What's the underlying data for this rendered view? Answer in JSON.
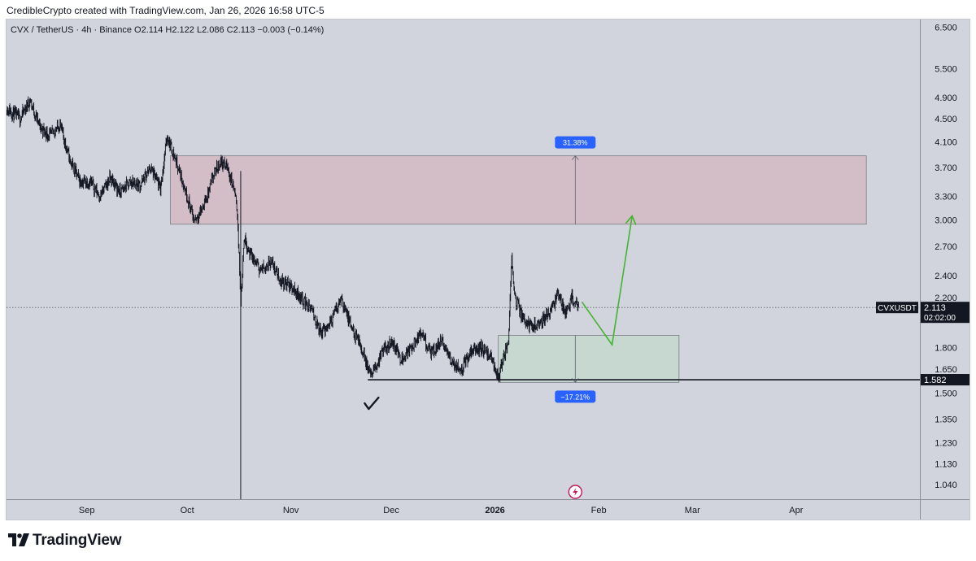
{
  "header": {
    "attribution": "CredibleCrypto created with TradingView.com, Jan 26, 2026 16:58 UTC-5"
  },
  "footer": {
    "brand": "TradingView"
  },
  "colors": {
    "background": "#d1d4dc",
    "candles": "#131722",
    "supply_zone": "#d3bec7",
    "demand_zone": "#c6d8cf",
    "projection_arrow": "#44b432",
    "measure_badge": "#2962ff"
  },
  "chart_data": {
    "type": "candlestick",
    "symbol": "CVX / TetherUS · 4h · Binance",
    "ohlc": {
      "open_label": "O",
      "open": "2.114",
      "high_label": "H",
      "high": "2.122",
      "low_label": "L",
      "low": "2.086",
      "close_label": "C",
      "close": "2.113",
      "change": "−0.003 (−0.14%)"
    },
    "y_scale": "log",
    "ylim": [
      0.98,
      6.7
    ],
    "y_ticks": [
      "6.500",
      "5.500",
      "4.900",
      "4.500",
      "4.100",
      "3.700",
      "3.300",
      "3.000",
      "2.700",
      "2.400",
      "2.200",
      "1.800",
      "1.650",
      "1.500",
      "1.350",
      "1.230",
      "1.130",
      "1.040"
    ],
    "x_ticks": [
      {
        "label": "Sep",
        "date": "2025-09-01",
        "bold": false
      },
      {
        "label": "Oct",
        "date": "2025-10-01",
        "bold": false
      },
      {
        "label": "Nov",
        "date": "2025-11-01",
        "bold": false
      },
      {
        "label": "Dec",
        "date": "2025-12-01",
        "bold": false
      },
      {
        "label": "2026",
        "date": "2026-01-01",
        "bold": true
      },
      {
        "label": "Feb",
        "date": "2026-02-01",
        "bold": false
      },
      {
        "label": "Mar",
        "date": "2026-03-01",
        "bold": false
      },
      {
        "label": "Apr",
        "date": "2026-04-01",
        "bold": false
      }
    ],
    "xlim": [
      "2025-08-08",
      "2026-05-08"
    ],
    "price_path": [
      [
        "2025-08-08",
        4.7
      ],
      [
        "2025-08-12",
        4.5
      ],
      [
        "2025-08-15",
        4.85
      ],
      [
        "2025-08-18",
        4.35
      ],
      [
        "2025-08-21",
        4.2
      ],
      [
        "2025-08-24",
        4.4
      ],
      [
        "2025-08-27",
        3.8
      ],
      [
        "2025-08-30",
        3.5
      ],
      [
        "2025-09-02",
        3.5
      ],
      [
        "2025-09-05",
        3.3
      ],
      [
        "2025-09-08",
        3.55
      ],
      [
        "2025-09-11",
        3.35
      ],
      [
        "2025-09-14",
        3.5
      ],
      [
        "2025-09-17",
        3.45
      ],
      [
        "2025-09-20",
        3.7
      ],
      [
        "2025-09-23",
        3.4
      ],
      [
        "2025-09-25",
        4.2
      ],
      [
        "2025-09-27",
        3.9
      ],
      [
        "2025-09-29",
        3.6
      ],
      [
        "2025-10-01",
        3.3
      ],
      [
        "2025-10-03",
        3.0
      ],
      [
        "2025-10-05",
        3.1
      ],
      [
        "2025-10-07",
        3.3
      ],
      [
        "2025-10-09",
        3.6
      ],
      [
        "2025-10-11",
        3.8
      ],
      [
        "2025-10-13",
        3.7
      ],
      [
        "2025-10-15",
        3.4
      ],
      [
        "2025-10-16",
        3.1
      ],
      [
        "2025-10-17",
        2.15
      ],
      [
        "2025-10-18",
        2.8
      ],
      [
        "2025-10-20",
        2.6
      ],
      [
        "2025-10-23",
        2.45
      ],
      [
        "2025-10-26",
        2.55
      ],
      [
        "2025-10-29",
        2.35
      ],
      [
        "2025-11-01",
        2.3
      ],
      [
        "2025-11-04",
        2.2
      ],
      [
        "2025-11-07",
        2.1
      ],
      [
        "2025-11-10",
        1.9
      ],
      [
        "2025-11-13",
        2.0
      ],
      [
        "2025-11-16",
        2.2
      ],
      [
        "2025-11-19",
        1.95
      ],
      [
        "2025-11-22",
        1.8
      ],
      [
        "2025-11-25",
        1.6
      ],
      [
        "2025-11-28",
        1.75
      ],
      [
        "2025-12-01",
        1.85
      ],
      [
        "2025-12-04",
        1.72
      ],
      [
        "2025-12-07",
        1.8
      ],
      [
        "2025-12-10",
        1.9
      ],
      [
        "2025-12-13",
        1.75
      ],
      [
        "2025-12-16",
        1.85
      ],
      [
        "2025-12-19",
        1.7
      ],
      [
        "2025-12-22",
        1.65
      ],
      [
        "2025-12-25",
        1.78
      ],
      [
        "2025-12-28",
        1.8
      ],
      [
        "2025-12-31",
        1.72
      ],
      [
        "2026-01-02",
        1.6
      ],
      [
        "2026-01-04",
        1.75
      ],
      [
        "2026-01-05",
        1.85
      ],
      [
        "2026-01-06",
        2.6
      ],
      [
        "2026-01-07",
        2.2
      ],
      [
        "2026-01-09",
        2.05
      ],
      [
        "2026-01-12",
        1.95
      ],
      [
        "2026-01-15",
        2.0
      ],
      [
        "2026-01-18",
        2.1
      ],
      [
        "2026-01-20",
        2.25
      ],
      [
        "2026-01-22",
        2.05
      ],
      [
        "2026-01-24",
        2.2
      ],
      [
        "2026-01-26",
        2.113
      ]
    ],
    "current_price": {
      "symbol": "CVXUSDT",
      "value": 2.113,
      "label": "2.113",
      "countdown": "02:02:00"
    },
    "horizontal_line": {
      "value": 1.582,
      "label": "1.582",
      "start": "2025-11-24"
    },
    "vertical_line": {
      "date": "2025-10-17"
    },
    "zones": [
      {
        "name": "resistance-zone",
        "x0": "2025-09-26",
        "x1": "2026-04-22",
        "y_low": 2.95,
        "y_high": 3.88,
        "measure_date": "2026-01-25",
        "measure_direction": "up",
        "measure_label": "31.38%"
      },
      {
        "name": "support-zone",
        "x0": "2026-01-02",
        "x1": "2026-02-25",
        "y_low": 1.565,
        "y_high": 1.89,
        "measure_date": "2026-01-25",
        "measure_direction": "down",
        "measure_label": "−17.21%"
      }
    ],
    "projection_path": [
      [
        "2026-01-27",
        2.16
      ],
      [
        "2026-02-05",
        1.82
      ],
      [
        "2026-02-11",
        3.05
      ]
    ],
    "annotations": [
      {
        "type": "checkmark",
        "date": "2025-11-25",
        "value": 1.43
      }
    ]
  }
}
